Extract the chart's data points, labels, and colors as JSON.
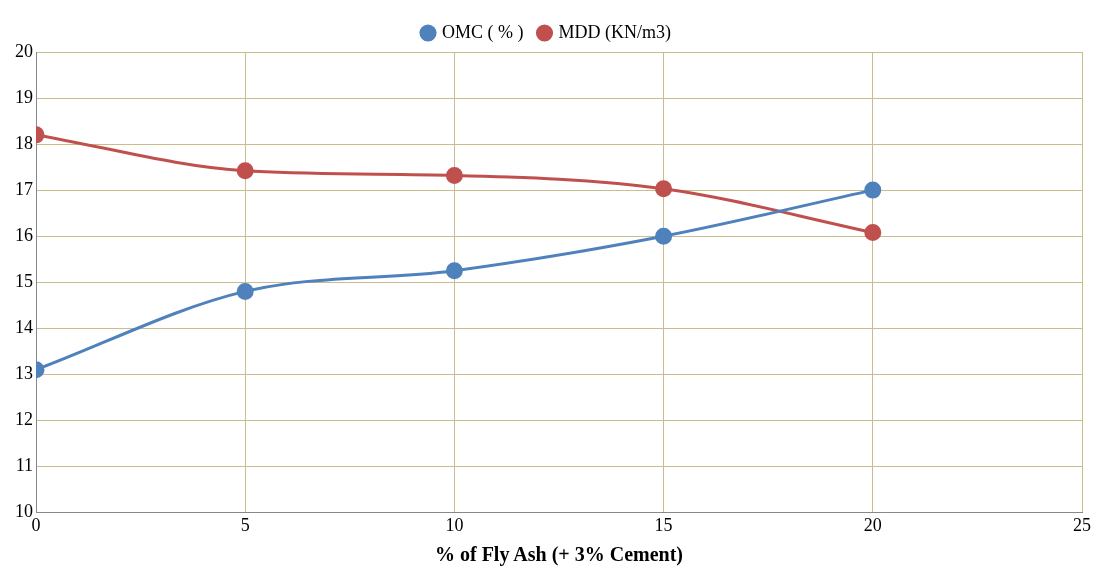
{
  "chart_data": {
    "type": "line",
    "xlabel": "% of Fly Ash (+ 3% Cement)",
    "x": [
      0,
      5,
      10,
      15,
      20
    ],
    "series": [
      {
        "name": "OMC ( % )",
        "color": "#4f81bd",
        "values": [
          13.1,
          14.8,
          15.25,
          16.0,
          17.0
        ]
      },
      {
        "name": "MDD (KN/m3)",
        "color": "#c0504d",
        "values": [
          18.2,
          17.42,
          17.32,
          17.03,
          16.08
        ]
      }
    ],
    "xlim": [
      0,
      25
    ],
    "xticks": [
      0,
      5,
      10,
      15,
      20,
      25
    ],
    "ylim": [
      10,
      20
    ],
    "yticks": [
      10,
      11,
      12,
      13,
      14,
      15,
      16,
      17,
      18,
      19,
      20
    ],
    "grid": true,
    "legend": "top",
    "marker": "circle",
    "line_style": "solid"
  }
}
